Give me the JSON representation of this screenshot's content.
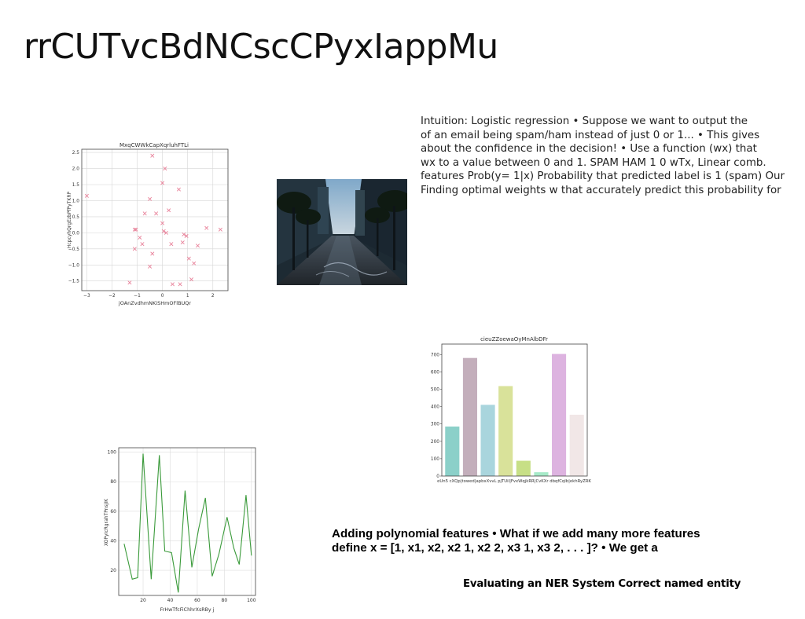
{
  "slide": {
    "title": "rrCUTvcBdNCscCPyxIappMu",
    "para1": [
      "Intuition: Logistic regression • Suppose we want to output the",
      "of an email being spam/ham instead of just 0 or 1... • This gives",
      "about the confidence in the decision! • Use a function \u001f(w\u001fx) that",
      "w\u001fx to a value between 0 and 1. SPAM HAM 1 0 wTx, Linear comb.",
      "features Prob(y= 1|x) Probability that predicted label is 1 (spam) Our",
      "Finding optimal weights w that accurately predict this probability for"
    ],
    "para2": [
      "Adding polynomial features • What if we add many more features",
      "define x = [1, x1, x2, x2 1, x2 2, x3 1, x3 2, . . . ]? • We get a"
    ],
    "para3": "Evaluating an NER System Correct named entity"
  },
  "chart_data": [
    {
      "type": "scatter",
      "title": "MxqCWWkCapXqrluhFTLi",
      "xlabel": "jOAnZvdhmNKiSHmOFlBUQr",
      "ylabel": "HcpcyhQrgEzbPfPyTKRP",
      "xlim": [
        -3.2,
        2.6
      ],
      "ylim": [
        -1.8,
        2.6
      ],
      "xticks": [
        -3,
        -2,
        -1,
        0,
        1,
        2
      ],
      "xtick_labels": [
        "−3",
        "−2",
        "−1",
        "0",
        "1",
        "2"
      ],
      "yticks": [
        -1.5,
        -1.0,
        -0.5,
        0.0,
        0.5,
        1.0,
        1.5,
        2.0,
        2.5
      ],
      "ytick_labels": [
        "−1.5",
        "−1.0",
        "−0.5",
        "0.0",
        "0.5",
        "1.0",
        "1.5",
        "2.0",
        "2.5"
      ],
      "grid": true,
      "marker": "x",
      "color": "#e8829a",
      "x": [
        -3.0,
        -1.3,
        -1.1,
        -1.05,
        -0.9,
        -0.8,
        -0.7,
        -0.5,
        -0.5,
        -0.4,
        -0.4,
        -0.25,
        0.0,
        0.0,
        0.05,
        0.1,
        0.15,
        0.25,
        0.35,
        0.4,
        0.65,
        0.7,
        0.8,
        0.85,
        0.95,
        1.05,
        1.15,
        1.25,
        1.4,
        1.75,
        2.3,
        -1.1
      ],
      "y": [
        1.15,
        -1.55,
        0.1,
        0.1,
        -0.15,
        -0.35,
        0.6,
        -1.05,
        1.05,
        2.4,
        -0.65,
        0.6,
        0.3,
        1.55,
        0.05,
        2.0,
        0.0,
        0.7,
        -0.35,
        -1.6,
        1.35,
        -1.6,
        -0.3,
        -0.05,
        -0.1,
        -0.8,
        -1.45,
        -0.95,
        -0.4,
        0.15,
        0.1,
        -0.5
      ]
    },
    {
      "type": "bar",
      "title": "cieuZZoewaOyMnAlbDFr",
      "categories": [
        "eUn5 cXQp",
        "Rtowed",
        "apbxXvvL",
        "pjTUil",
        "FvxWqjkRR",
        "CvKXr",
        "dbqfCqlb",
        "ekhRyZRK"
      ],
      "category_labels_visible": "eUn5 cXQp|towed|apbxXvvL pjTUil|FvxWqjkRR|CvKXr dbqfCqlb|ekhRyZRK",
      "values": [
        285,
        680,
        410,
        518,
        88,
        22,
        703,
        353
      ],
      "colors": [
        "#8bd0c9",
        "#c3aebb",
        "#a9d5dd",
        "#d9e29a",
        "#c7df86",
        "#a6eac8",
        "#ddb3e0",
        "#f1e7e7"
      ],
      "ylim": [
        0,
        760
      ],
      "yticks": [
        0,
        100,
        200,
        300,
        400,
        500,
        600,
        700
      ],
      "ytick_labels": [
        "0",
        "100",
        "200",
        "300",
        "400",
        "500",
        "600",
        "700"
      ],
      "grid": false
    },
    {
      "type": "line",
      "title": "",
      "xlabel": "FrHwTfcFiChhrXsRBy j",
      "ylabel": "XOPyIcRgrahTPnsjIK",
      "xlim": [
        2,
        103
      ],
      "ylim": [
        3,
        103
      ],
      "xticks": [
        20,
        40,
        60,
        80,
        100
      ],
      "xtick_labels": [
        "20",
        "40",
        "60",
        "80",
        "100"
      ],
      "yticks": [
        20,
        40,
        60,
        80,
        100
      ],
      "ytick_labels": [
        "20",
        "40",
        "60",
        "80",
        "100"
      ],
      "grid": true,
      "color": "#3a9a3a",
      "x": [
        6,
        12,
        16,
        20,
        26,
        32,
        36,
        41,
        46,
        51,
        56,
        61,
        66,
        71,
        76,
        82,
        87,
        91,
        96,
        100
      ],
      "y": [
        38,
        14,
        15,
        99,
        14,
        98,
        33,
        32,
        5,
        74,
        22,
        48,
        69,
        16,
        31,
        56,
        35,
        24,
        71,
        30
      ]
    }
  ]
}
